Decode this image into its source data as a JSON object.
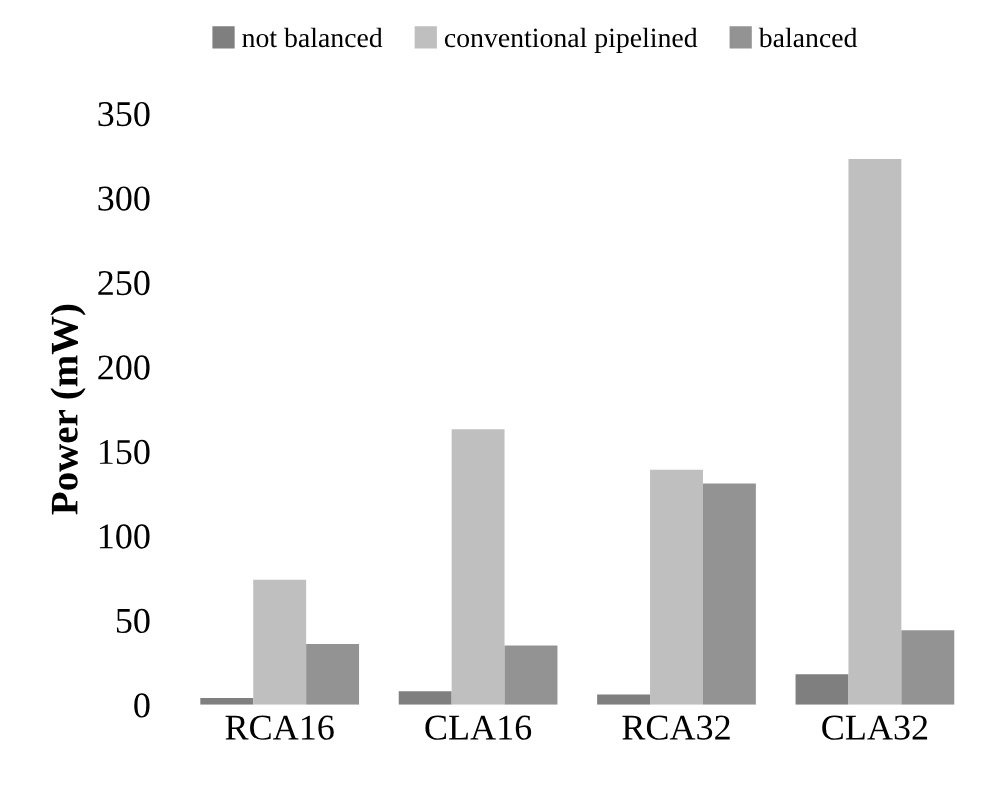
{
  "chart_data": {
    "type": "bar",
    "ylabel": "Power (mW)",
    "categories": [
      "RCA16",
      "CLA16",
      "RCA32",
      "CLA32"
    ],
    "series": [
      {
        "name": "not balanced",
        "color": "#7f7f7f",
        "values": [
          4,
          8,
          6,
          18
        ]
      },
      {
        "name": "conventional pipelined",
        "color": "#bfbfbf",
        "values": [
          74,
          163,
          139,
          323
        ]
      },
      {
        "name": "balanced",
        "color": "#939393",
        "values": [
          36,
          35,
          131,
          44
        ]
      }
    ],
    "ylim": [
      0,
      350
    ],
    "yticks": [
      0,
      50,
      100,
      150,
      200,
      250,
      300,
      350
    ],
    "grid": false,
    "legend": "top"
  }
}
